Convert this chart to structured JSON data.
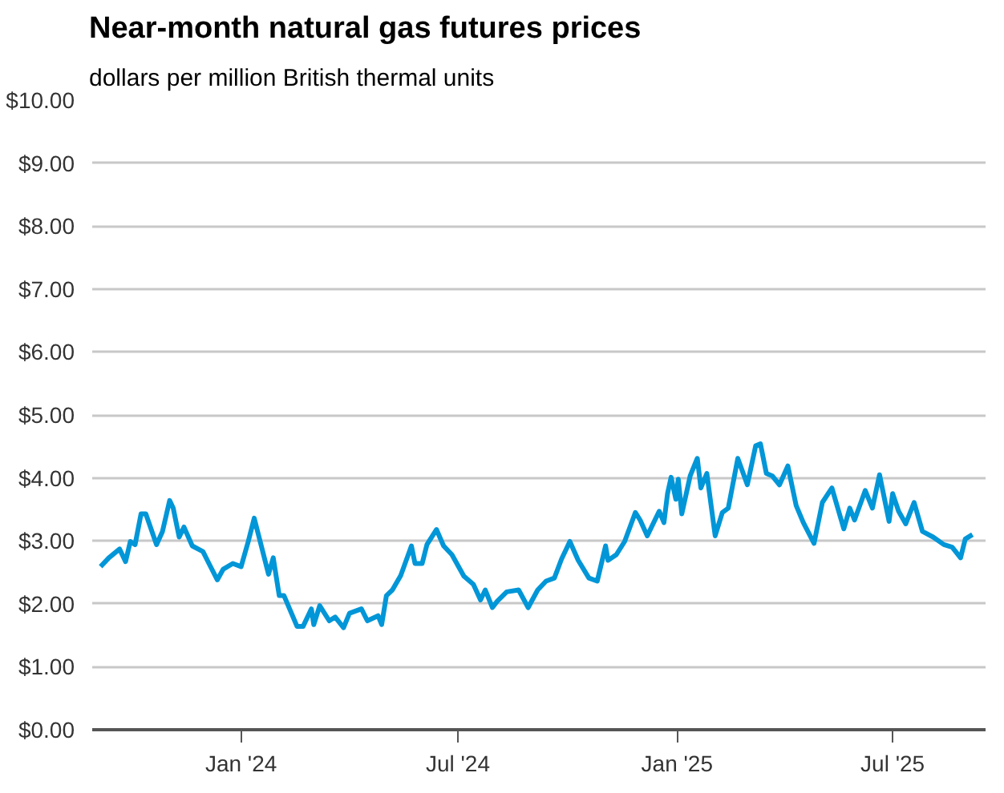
{
  "chart_data": {
    "type": "line",
    "title": "Near-month natural gas futures prices",
    "subtitle": "dollars per million British thermal units",
    "x": [
      "2023-09-05",
      "2023-09-12",
      "2023-09-21",
      "2023-09-26",
      "2023-09-30",
      "2023-10-04",
      "2023-10-09",
      "2023-10-13",
      "2023-10-22",
      "2023-10-27",
      "2023-11-02",
      "2023-11-05",
      "2023-11-10",
      "2023-11-14",
      "2023-11-21",
      "2023-11-30",
      "2023-12-05",
      "2023-12-12",
      "2023-12-17",
      "2023-12-25",
      "2024-01-01",
      "2024-01-07",
      "2024-01-12",
      "2024-01-17",
      "2024-01-24",
      "2024-01-28",
      "2024-02-02",
      "2024-02-06",
      "2024-02-17",
      "2024-02-22",
      "2024-02-29",
      "2024-03-02",
      "2024-03-07",
      "2024-03-15",
      "2024-03-20",
      "2024-03-27",
      "2024-04-01",
      "2024-04-11",
      "2024-04-16",
      "2024-04-25",
      "2024-04-28",
      "2024-05-02",
      "2024-05-07",
      "2024-05-14",
      "2024-05-23",
      "2024-05-26",
      "2024-06-01",
      "2024-06-05",
      "2024-06-13",
      "2024-06-19",
      "2024-06-26",
      "2024-07-06",
      "2024-07-14",
      "2024-07-20",
      "2024-07-24",
      "2024-07-30",
      "2024-08-03",
      "2024-08-11",
      "2024-08-21",
      "2024-08-29",
      "2024-09-06",
      "2024-09-13",
      "2024-09-20",
      "2024-09-26",
      "2024-10-03",
      "2024-10-10",
      "2024-10-19",
      "2024-10-26",
      "2024-11-02",
      "2024-11-04",
      "2024-11-11",
      "2024-11-18",
      "2024-11-27",
      "2024-12-01",
      "2024-12-07",
      "2024-12-17",
      "2024-12-21",
      "2024-12-24",
      "2024-12-27",
      "2024-12-31",
      "2025-01-02",
      "2025-01-05",
      "2025-01-12",
      "2025-01-18",
      "2025-01-21",
      "2025-01-26",
      "2025-02-02",
      "2025-02-08",
      "2025-02-13",
      "2025-02-21",
      "2025-03-01",
      "2025-03-08",
      "2025-03-12",
      "2025-03-17",
      "2025-03-22",
      "2025-03-28",
      "2025-04-04",
      "2025-04-11",
      "2025-04-17",
      "2025-04-26",
      "2025-05-03",
      "2025-05-11",
      "2025-05-21",
      "2025-05-26",
      "2025-05-30",
      "2025-06-08",
      "2025-06-14",
      "2025-06-20",
      "2025-06-28",
      "2025-07-01",
      "2025-07-06",
      "2025-07-12",
      "2025-07-19",
      "2025-07-26",
      "2025-08-04",
      "2025-08-13",
      "2025-08-20",
      "2025-08-27",
      "2025-08-31",
      "2025-09-06"
    ],
    "series": [
      {
        "color": "#0096d7",
        "values": [
          2.59,
          2.73,
          2.87,
          2.67,
          2.99,
          2.94,
          3.43,
          3.43,
          2.94,
          3.15,
          3.64,
          3.52,
          3.06,
          3.22,
          2.92,
          2.83,
          2.64,
          2.38,
          2.55,
          2.64,
          2.59,
          2.99,
          3.36,
          2.99,
          2.47,
          2.73,
          2.13,
          2.13,
          1.64,
          1.64,
          1.92,
          1.67,
          1.97,
          1.73,
          1.79,
          1.62,
          1.85,
          1.92,
          1.73,
          1.81,
          1.67,
          2.13,
          2.22,
          2.45,
          2.92,
          2.64,
          2.64,
          2.94,
          3.18,
          2.92,
          2.78,
          2.44,
          2.31,
          2.06,
          2.22,
          1.94,
          2.04,
          2.19,
          2.22,
          1.94,
          2.22,
          2.36,
          2.41,
          2.71,
          2.99,
          2.69,
          2.41,
          2.36,
          2.92,
          2.69,
          2.78,
          2.99,
          3.45,
          3.33,
          3.08,
          3.47,
          3.29,
          3.75,
          4.01,
          3.66,
          3.98,
          3.43,
          4.03,
          4.31,
          3.84,
          4.07,
          3.08,
          3.45,
          3.52,
          4.31,
          3.89,
          4.51,
          4.54,
          4.07,
          4.03,
          3.89,
          4.19,
          3.56,
          3.29,
          2.96,
          3.61,
          3.84,
          3.19,
          3.52,
          3.33,
          3.8,
          3.52,
          4.05,
          3.31,
          3.75,
          3.47,
          3.27,
          3.61,
          3.15,
          3.06,
          2.94,
          2.9,
          2.73,
          3.03,
          3.1
        ]
      }
    ],
    "xlim": [
      "2023-08-29",
      "2025-09-17"
    ],
    "xticks": [
      {
        "value": "2024-01-01",
        "label": "Jan '24"
      },
      {
        "value": "2024-07-01",
        "label": "Jul '24"
      },
      {
        "value": "2025-01-01",
        "label": "Jan '25"
      },
      {
        "value": "2025-07-01",
        "label": "Jul '25"
      }
    ],
    "ylim": [
      0,
      10
    ],
    "yticks": [
      {
        "value": 0,
        "label": "$0.00"
      },
      {
        "value": 1,
        "label": "$1.00"
      },
      {
        "value": 2,
        "label": "$2.00"
      },
      {
        "value": 3,
        "label": "$3.00"
      },
      {
        "value": 4,
        "label": "$4.00"
      },
      {
        "value": 5,
        "label": "$5.00"
      },
      {
        "value": 6,
        "label": "$6.00"
      },
      {
        "value": 7,
        "label": "$7.00"
      },
      {
        "value": 8,
        "label": "$8.00"
      },
      {
        "value": 9,
        "label": "$9.00"
      },
      {
        "value": 10,
        "label": "$10.00"
      }
    ],
    "grid": "y",
    "line_style": "solid"
  }
}
